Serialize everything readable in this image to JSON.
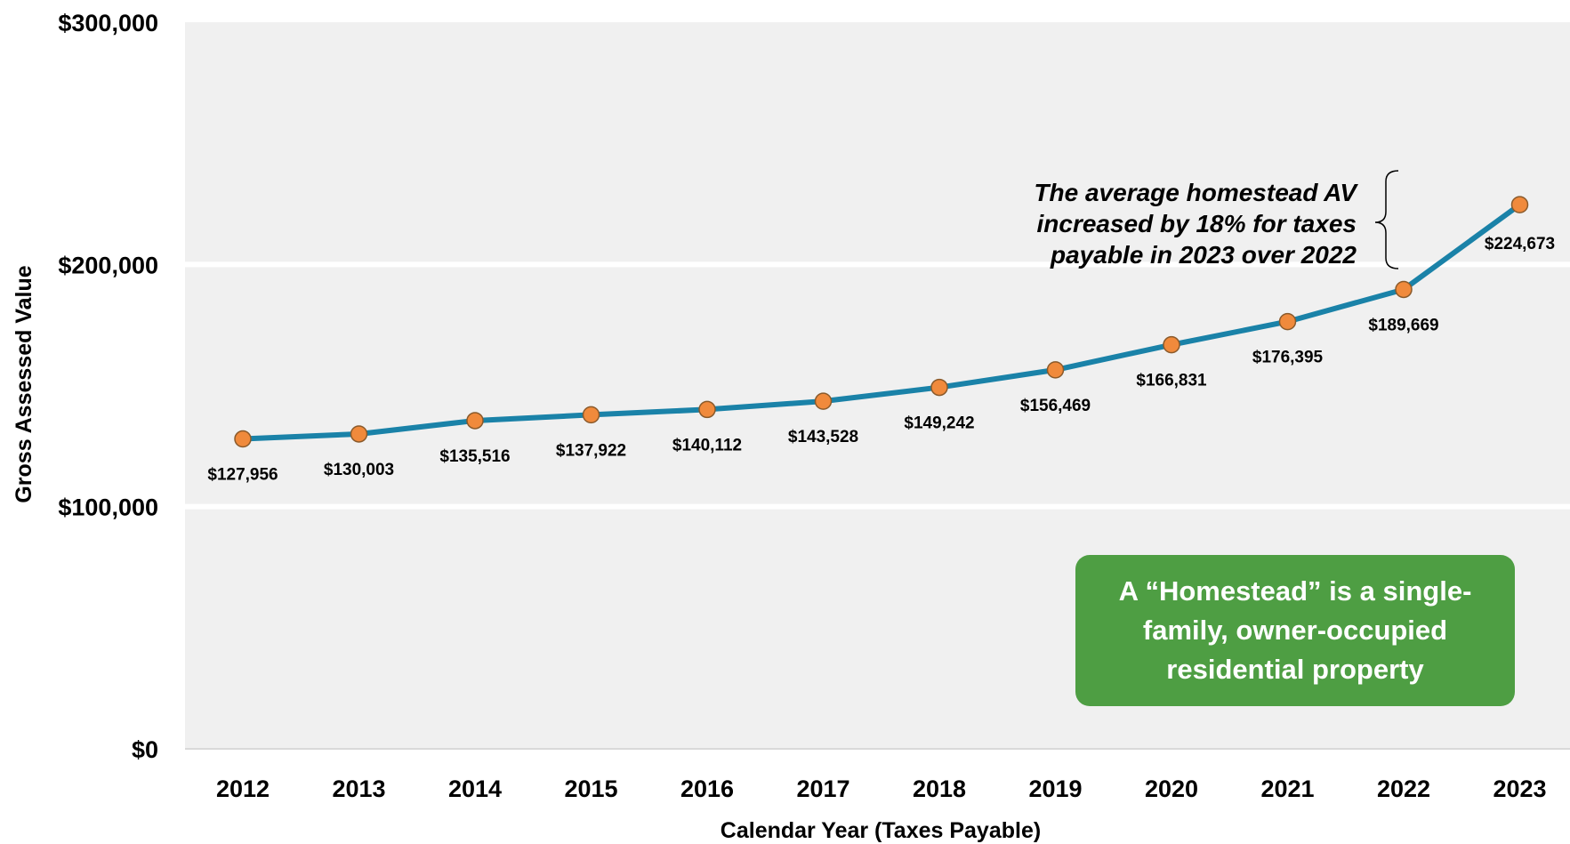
{
  "chart_data": {
    "type": "line",
    "x": [
      "2012",
      "2013",
      "2014",
      "2015",
      "2016",
      "2017",
      "2018",
      "2019",
      "2020",
      "2021",
      "2022",
      "2023"
    ],
    "series": [
      {
        "values": [
          127956,
          130003,
          135516,
          137922,
          140112,
          143528,
          149242,
          156469,
          166831,
          176395,
          189669,
          224673
        ],
        "data_labels": [
          "$127,956",
          "$130,003",
          "$135,516",
          "$137,922",
          "$140,112",
          "$143,528",
          "$149,242",
          "$156,469",
          "$166,831",
          "$176,395",
          "$189,669",
          "$224,673"
        ]
      }
    ],
    "xlabel": "Calendar Year (Taxes Payable)",
    "ylabel": "Gross Assessed Value",
    "ylim": [
      0,
      300000
    ],
    "yticks": [
      0,
      100000,
      200000,
      300000
    ],
    "ytick_labels": [
      "$0",
      "$100,000",
      "$200,000",
      "$300,000"
    ],
    "grid": true,
    "annotation_lines": [
      "The average homestead AV",
      "increased by 18% for taxes",
      "payable in 2023 over 2022"
    ],
    "callout_text": "A “Homestead” is a single-family, owner-occupied residential property"
  },
  "colors": {
    "line": "#1a82a8",
    "marker": "#f08a3c",
    "marker_edge": "#8a5a2b",
    "plot_bg": "#f0f0f0",
    "grid": "#ffffff",
    "callout": "#4e9e43"
  }
}
